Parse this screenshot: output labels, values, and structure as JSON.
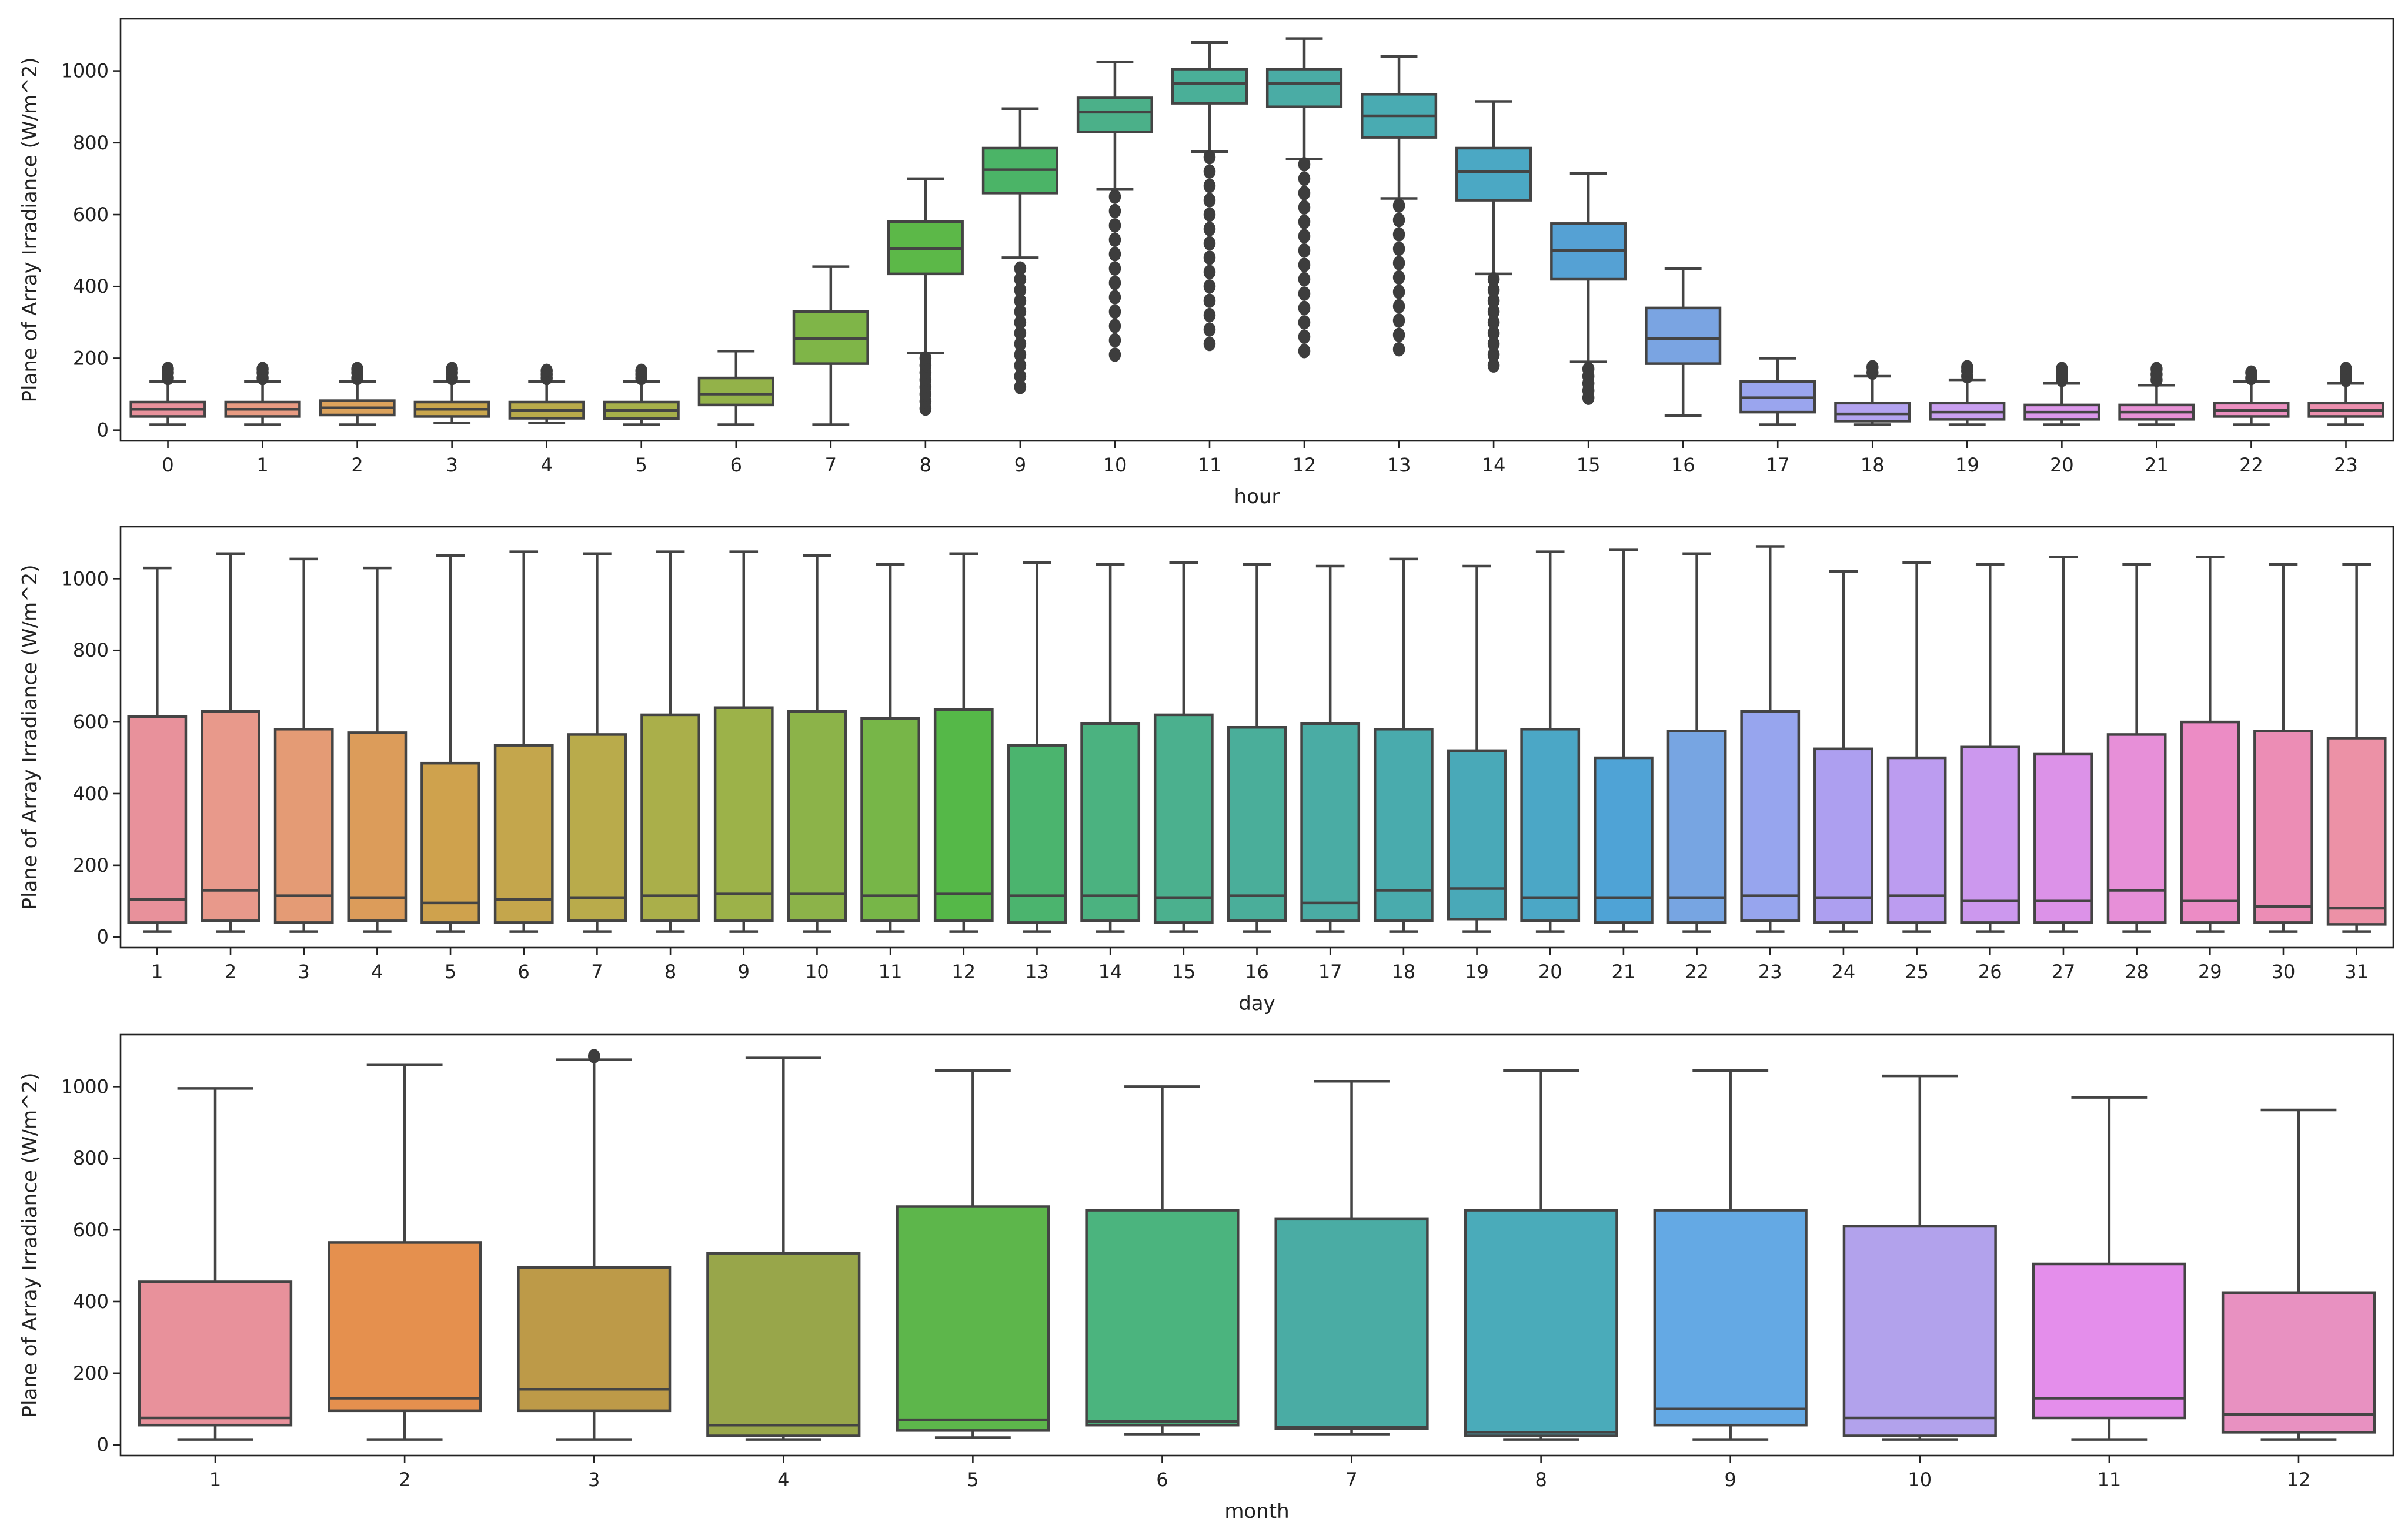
{
  "chart_data": [
    {
      "type": "box",
      "xlabel": "hour",
      "ylabel": "Plane of Array Irradiance (W/m^2)",
      "ylim": [
        -30,
        1145
      ],
      "yticks": [
        0,
        200,
        400,
        600,
        800,
        1000
      ],
      "categories": [
        "0",
        "1",
        "2",
        "3",
        "4",
        "5",
        "6",
        "7",
        "8",
        "9",
        "10",
        "11",
        "12",
        "13",
        "14",
        "15",
        "16",
        "17",
        "18",
        "19",
        "20",
        "21",
        "22",
        "23"
      ],
      "colors": [
        "#e8919b",
        "#e89b82",
        "#dba25c",
        "#c9a64c",
        "#b9ab4b",
        "#a6b04a",
        "#93b249",
        "#7fb548",
        "#5cb848",
        "#4bb467",
        "#4bb089",
        "#4aaf98",
        "#4aaca5",
        "#49abb2",
        "#4ba8c4",
        "#55a1d4",
        "#7aa4e2",
        "#9aa5ee",
        "#b3a3f0",
        "#c99ff0",
        "#dc97ea",
        "#e791d5",
        "#ec8fc0",
        "#ec8fae"
      ],
      "stats": [
        {
          "min": 15,
          "q1": 38,
          "median": 58,
          "q3": 78,
          "max": 135,
          "outliers": [
            145,
            160,
            170
          ]
        },
        {
          "min": 15,
          "q1": 38,
          "median": 58,
          "q3": 78,
          "max": 135,
          "outliers": [
            145,
            160,
            170
          ]
        },
        {
          "min": 15,
          "q1": 42,
          "median": 62,
          "q3": 82,
          "max": 135,
          "outliers": [
            145,
            160,
            170
          ]
        },
        {
          "min": 20,
          "q1": 38,
          "median": 58,
          "q3": 78,
          "max": 135,
          "outliers": [
            145,
            160,
            170
          ]
        },
        {
          "min": 20,
          "q1": 33,
          "median": 55,
          "q3": 78,
          "max": 135,
          "outliers": [
            145,
            155,
            165
          ]
        },
        {
          "min": 15,
          "q1": 32,
          "median": 55,
          "q3": 78,
          "max": 135,
          "outliers": [
            145,
            155,
            165
          ]
        },
        {
          "min": 15,
          "q1": 70,
          "median": 100,
          "q3": 145,
          "max": 220,
          "outliers": []
        },
        {
          "min": 15,
          "q1": 185,
          "median": 255,
          "q3": 330,
          "max": 455,
          "outliers": []
        },
        {
          "min": 215,
          "q1": 435,
          "median": 505,
          "q3": 580,
          "max": 700,
          "outliers": [
            60,
            80,
            100,
            120,
            140,
            160,
            180,
            200
          ]
        },
        {
          "min": 480,
          "q1": 660,
          "median": 725,
          "q3": 785,
          "max": 895,
          "outliers": [
            120,
            150,
            180,
            210,
            240,
            270,
            300,
            330,
            360,
            390,
            420,
            450
          ]
        },
        {
          "min": 670,
          "q1": 830,
          "median": 885,
          "q3": 925,
          "max": 1025,
          "outliers": [
            210,
            250,
            290,
            330,
            370,
            410,
            450,
            490,
            530,
            570,
            610,
            650
          ]
        },
        {
          "min": 775,
          "q1": 910,
          "median": 965,
          "q3": 1005,
          "max": 1080,
          "outliers": [
            240,
            280,
            320,
            360,
            400,
            440,
            480,
            520,
            560,
            600,
            640,
            680,
            720,
            760
          ]
        },
        {
          "min": 755,
          "q1": 900,
          "median": 965,
          "q3": 1005,
          "max": 1090,
          "outliers": [
            220,
            260,
            300,
            340,
            380,
            420,
            460,
            500,
            540,
            580,
            620,
            660,
            700,
            740
          ]
        },
        {
          "min": 645,
          "q1": 815,
          "median": 875,
          "q3": 935,
          "max": 1040,
          "outliers": [
            225,
            265,
            305,
            345,
            385,
            425,
            465,
            505,
            545,
            585,
            625
          ]
        },
        {
          "min": 435,
          "q1": 640,
          "median": 720,
          "q3": 785,
          "max": 915,
          "outliers": [
            180,
            210,
            240,
            270,
            300,
            330,
            360,
            390,
            420
          ]
        },
        {
          "min": 190,
          "q1": 420,
          "median": 500,
          "q3": 575,
          "max": 715,
          "outliers": [
            90,
            110,
            130,
            150,
            170
          ]
        },
        {
          "min": 40,
          "q1": 185,
          "median": 255,
          "q3": 340,
          "max": 450,
          "outliers": []
        },
        {
          "min": 15,
          "q1": 50,
          "median": 90,
          "q3": 135,
          "max": 200,
          "outliers": []
        },
        {
          "min": 15,
          "q1": 25,
          "median": 45,
          "q3": 75,
          "max": 150,
          "outliers": [
            160,
            175
          ]
        },
        {
          "min": 15,
          "q1": 30,
          "median": 50,
          "q3": 75,
          "max": 140,
          "outliers": [
            150,
            165,
            175
          ]
        },
        {
          "min": 15,
          "q1": 30,
          "median": 50,
          "q3": 70,
          "max": 130,
          "outliers": [
            140,
            155,
            170
          ]
        },
        {
          "min": 15,
          "q1": 30,
          "median": 50,
          "q3": 70,
          "max": 125,
          "outliers": [
            140,
            155,
            170
          ]
        },
        {
          "min": 15,
          "q1": 38,
          "median": 55,
          "q3": 75,
          "max": 135,
          "outliers": [
            145,
            160
          ]
        },
        {
          "min": 15,
          "q1": 38,
          "median": 55,
          "q3": 75,
          "max": 130,
          "outliers": [
            140,
            155,
            170
          ]
        }
      ]
    },
    {
      "type": "box",
      "xlabel": "day",
      "ylabel": "Plane of Array Irradiance (W/m^2)",
      "ylim": [
        -30,
        1145
      ],
      "yticks": [
        0,
        200,
        400,
        600,
        800,
        1000
      ],
      "categories": [
        "1",
        "2",
        "3",
        "4",
        "5",
        "6",
        "7",
        "8",
        "9",
        "10",
        "11",
        "12",
        "13",
        "14",
        "15",
        "16",
        "17",
        "18",
        "19",
        "20",
        "21",
        "22",
        "23",
        "24",
        "25",
        "26",
        "27",
        "28",
        "29",
        "30",
        "31"
      ],
      "colors": [
        "#e8919b",
        "#e8998b",
        "#e49b75",
        "#dc9c5a",
        "#cfa24d",
        "#c4a64c",
        "#b9ab4b",
        "#aaaf4a",
        "#9cb249",
        "#8cb349",
        "#77b648",
        "#55b848",
        "#4bb46e",
        "#4bb280",
        "#4bb08e",
        "#4aae9a",
        "#4aaca4",
        "#49abad",
        "#49a9b8",
        "#4ba7c6",
        "#4fa3d6",
        "#77a5e2",
        "#97a5ee",
        "#ad9ff0",
        "#bc9cf0",
        "#cc98ee",
        "#dc92e8",
        "#e78fd8",
        "#ec8cc5",
        "#ec8db5",
        "#ec91a6"
      ],
      "stats": [
        {
          "min": 15,
          "q1": 40,
          "median": 105,
          "q3": 615,
          "max": 1030
        },
        {
          "min": 15,
          "q1": 45,
          "median": 130,
          "q3": 630,
          "max": 1070
        },
        {
          "min": 15,
          "q1": 40,
          "median": 115,
          "q3": 580,
          "max": 1055
        },
        {
          "min": 15,
          "q1": 45,
          "median": 110,
          "q3": 570,
          "max": 1030
        },
        {
          "min": 15,
          "q1": 40,
          "median": 95,
          "q3": 485,
          "max": 1065
        },
        {
          "min": 15,
          "q1": 40,
          "median": 105,
          "q3": 535,
          "max": 1075
        },
        {
          "min": 15,
          "q1": 45,
          "median": 110,
          "q3": 565,
          "max": 1070
        },
        {
          "min": 15,
          "q1": 45,
          "median": 115,
          "q3": 620,
          "max": 1075
        },
        {
          "min": 15,
          "q1": 45,
          "median": 120,
          "q3": 640,
          "max": 1075
        },
        {
          "min": 15,
          "q1": 45,
          "median": 120,
          "q3": 630,
          "max": 1065
        },
        {
          "min": 15,
          "q1": 45,
          "median": 115,
          "q3": 610,
          "max": 1040
        },
        {
          "min": 15,
          "q1": 45,
          "median": 120,
          "q3": 635,
          "max": 1070
        },
        {
          "min": 15,
          "q1": 40,
          "median": 115,
          "q3": 535,
          "max": 1045
        },
        {
          "min": 15,
          "q1": 45,
          "median": 115,
          "q3": 595,
          "max": 1040
        },
        {
          "min": 15,
          "q1": 40,
          "median": 110,
          "q3": 620,
          "max": 1045
        },
        {
          "min": 15,
          "q1": 45,
          "median": 115,
          "q3": 585,
          "max": 1040
        },
        {
          "min": 15,
          "q1": 45,
          "median": 95,
          "q3": 595,
          "max": 1035
        },
        {
          "min": 15,
          "q1": 45,
          "median": 130,
          "q3": 580,
          "max": 1055
        },
        {
          "min": 15,
          "q1": 50,
          "median": 135,
          "q3": 520,
          "max": 1035
        },
        {
          "min": 15,
          "q1": 45,
          "median": 110,
          "q3": 580,
          "max": 1075
        },
        {
          "min": 15,
          "q1": 40,
          "median": 110,
          "q3": 500,
          "max": 1080
        },
        {
          "min": 15,
          "q1": 40,
          "median": 110,
          "q3": 575,
          "max": 1070
        },
        {
          "min": 15,
          "q1": 45,
          "median": 115,
          "q3": 630,
          "max": 1090
        },
        {
          "min": 15,
          "q1": 40,
          "median": 110,
          "q3": 525,
          "max": 1020
        },
        {
          "min": 15,
          "q1": 40,
          "median": 115,
          "q3": 500,
          "max": 1045
        },
        {
          "min": 15,
          "q1": 40,
          "median": 100,
          "q3": 530,
          "max": 1040
        },
        {
          "min": 15,
          "q1": 40,
          "median": 100,
          "q3": 510,
          "max": 1060
        },
        {
          "min": 15,
          "q1": 40,
          "median": 130,
          "q3": 565,
          "max": 1040
        },
        {
          "min": 15,
          "q1": 40,
          "median": 100,
          "q3": 600,
          "max": 1060
        },
        {
          "min": 15,
          "q1": 40,
          "median": 85,
          "q3": 575,
          "max": 1040
        },
        {
          "min": 15,
          "q1": 35,
          "median": 80,
          "q3": 555,
          "max": 1040
        }
      ]
    },
    {
      "type": "box",
      "xlabel": "month",
      "ylabel": "Plane of Array Irradiance (W/m^2)",
      "ylim": [
        -30,
        1145
      ],
      "yticks": [
        0,
        200,
        400,
        600,
        800,
        1000
      ],
      "categories": [
        "1",
        "2",
        "3",
        "4",
        "5",
        "6",
        "7",
        "8",
        "9",
        "10",
        "11",
        "12"
      ],
      "colors": [
        "#e8919b",
        "#e5904e",
        "#bd9a48",
        "#98a64a",
        "#5db64b",
        "#4bb47e",
        "#4aaca4",
        "#4aabba",
        "#64a9e4",
        "#b2a2ec",
        "#e48eeb",
        "#e891c1"
      ],
      "stats": [
        {
          "min": 15,
          "q1": 55,
          "median": 75,
          "q3": 455,
          "max": 995,
          "outliers": []
        },
        {
          "min": 15,
          "q1": 95,
          "median": 130,
          "q3": 565,
          "max": 1060,
          "outliers": []
        },
        {
          "min": 15,
          "q1": 95,
          "median": 155,
          "q3": 495,
          "max": 1075,
          "outliers": [
            1085
          ]
        },
        {
          "min": 15,
          "q1": 25,
          "median": 55,
          "q3": 535,
          "max": 1080,
          "outliers": []
        },
        {
          "min": 20,
          "q1": 40,
          "median": 70,
          "q3": 665,
          "max": 1045,
          "outliers": []
        },
        {
          "min": 30,
          "q1": 55,
          "median": 65,
          "q3": 655,
          "max": 1000,
          "outliers": []
        },
        {
          "min": 30,
          "q1": 45,
          "median": 50,
          "q3": 630,
          "max": 1015,
          "outliers": []
        },
        {
          "min": 15,
          "q1": 25,
          "median": 35,
          "q3": 655,
          "max": 1045,
          "outliers": []
        },
        {
          "min": 15,
          "q1": 55,
          "median": 100,
          "q3": 655,
          "max": 1045,
          "outliers": []
        },
        {
          "min": 15,
          "q1": 25,
          "median": 75,
          "q3": 610,
          "max": 1030,
          "outliers": []
        },
        {
          "min": 15,
          "q1": 75,
          "median": 130,
          "q3": 505,
          "max": 970,
          "outliers": []
        },
        {
          "min": 15,
          "q1": 35,
          "median": 85,
          "q3": 425,
          "max": 935,
          "outliers": []
        }
      ]
    }
  ]
}
